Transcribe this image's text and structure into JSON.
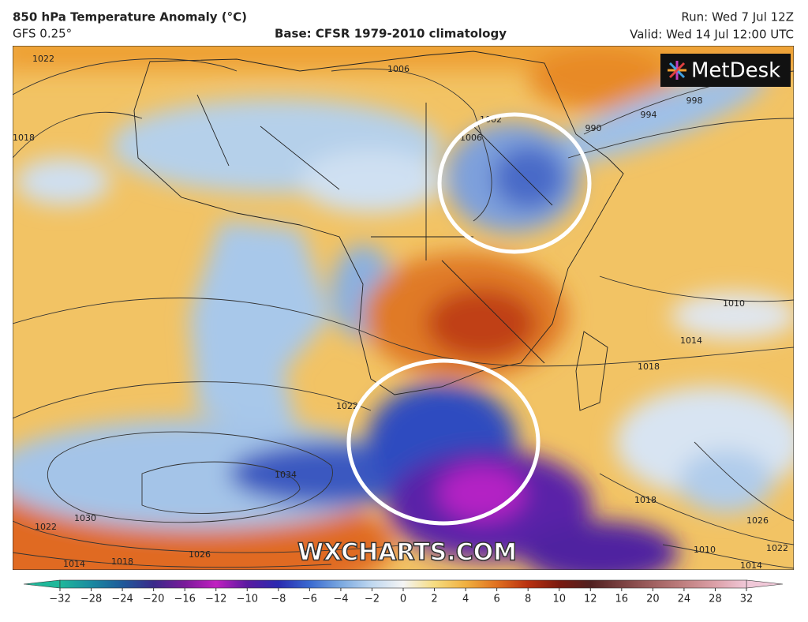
{
  "header": {
    "title": "850 hPa Temperature Anomaly (°C)",
    "model": "GFS 0.25°",
    "base": "Base: CFSR 1979-2010 climatology",
    "run": "Run: Wed 7 Jul 12Z",
    "valid": "Valid: Wed 14 Jul 12:00 UTC"
  },
  "logo": "MetDesk",
  "watermark": "WXCHARTS.COM",
  "isobar_labels": [
    "1022",
    "1018",
    "1006",
    "1002",
    "1006",
    "998",
    "994",
    "990",
    "1010",
    "1014",
    "1018",
    "1022",
    "1034",
    "1030",
    "1022",
    "1026",
    "1018",
    "1014",
    "1018",
    "1026",
    "1010",
    "1022",
    "1014"
  ],
  "colorbar": {
    "labels": [
      "−32",
      "−28",
      "−24",
      "−20",
      "−16",
      "−12",
      "−10",
      "−8",
      "−6",
      "−4",
      "−2",
      "0",
      "2",
      "4",
      "6",
      "8",
      "10",
      "12",
      "16",
      "20",
      "24",
      "28",
      "32"
    ],
    "colors": [
      "#1fb89a",
      "#1a8aa0",
      "#1e5a9a",
      "#3a2a8a",
      "#7a1a9a",
      "#c020c0",
      "#5a1aa0",
      "#2a2ab0",
      "#3a6ad0",
      "#7aa8e0",
      "#c0d8f0",
      "#f4f4f4",
      "#f6dc80",
      "#f0b040",
      "#e07020",
      "#b83010",
      "#7a1a10",
      "#502020",
      "#7a4040",
      "#a06060",
      "#c08080",
      "#dca0a8",
      "#f0c8d8"
    ]
  }
}
